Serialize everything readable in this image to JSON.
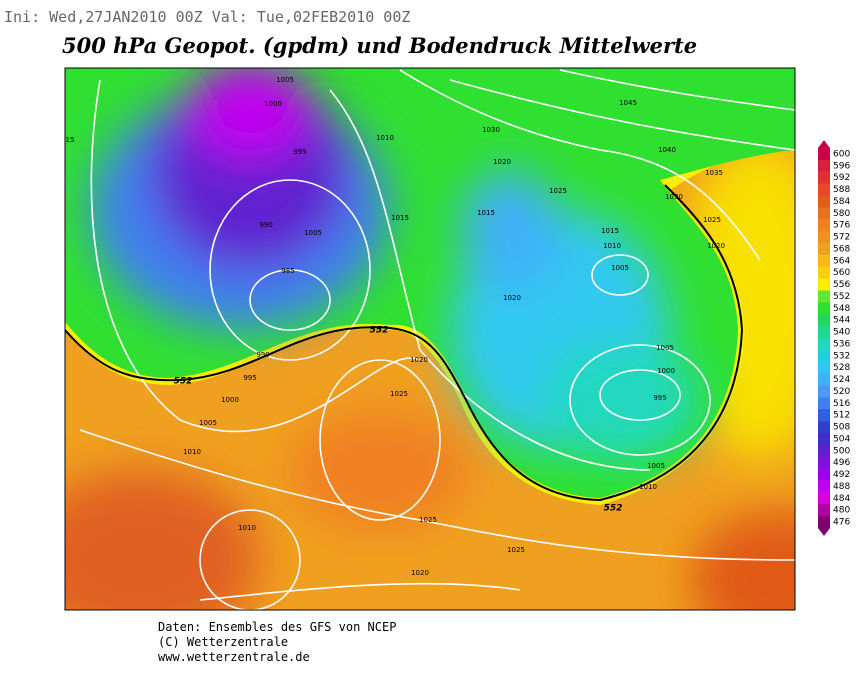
{
  "header": {
    "run": "Ini: Wed,27JAN2010 00Z Val: Tue,02FEB2010 00Z",
    "title": "500 hPa Geopot. (gpdm) und Bodendruck Mittelwerte"
  },
  "colorbar": {
    "values": [
      600,
      596,
      592,
      588,
      584,
      580,
      576,
      572,
      568,
      564,
      560,
      556,
      552,
      548,
      544,
      540,
      536,
      532,
      528,
      524,
      520,
      516,
      512,
      508,
      504,
      500,
      496,
      492,
      488,
      484,
      480,
      476
    ],
    "colors": [
      "#c8004a",
      "#d8203c",
      "#e03030",
      "#e84828",
      "#e05a18",
      "#e87020",
      "#f08020",
      "#f09020",
      "#f0a020",
      "#f8b818",
      "#f8d010",
      "#f8f000",
      "#60e830",
      "#30e030",
      "#20d860",
      "#20d890",
      "#20d8c0",
      "#20d0e0",
      "#30c8f0",
      "#40b0f8",
      "#5098f8",
      "#4080f0",
      "#3060e0",
      "#3040d0",
      "#4030c8",
      "#6020d0",
      "#8010e0",
      "#a000f0",
      "#c000f0",
      "#d800e0",
      "#b000a0",
      "#800070"
    ]
  },
  "isobar_labels": [
    15,
    1005,
    1000,
    995,
    990,
    985,
    1005,
    1010,
    1015,
    1020,
    1030,
    1045,
    1040,
    1035,
    1030,
    1025,
    1020,
    1025,
    1015,
    1015,
    1010,
    1005,
    1020,
    990,
    995,
    1000,
    1005,
    1010,
    1020,
    1025,
    1005,
    1000,
    995,
    1005,
    1010,
    1025,
    1025,
    1010,
    1020
  ],
  "geopotential_labels": [
    552,
    552,
    552
  ],
  "footer": {
    "lines": [
      "Daten: Ensembles des GFS von NCEP",
      "(C) Wetterzentrale",
      "www.wetterzentrale.de"
    ]
  }
}
